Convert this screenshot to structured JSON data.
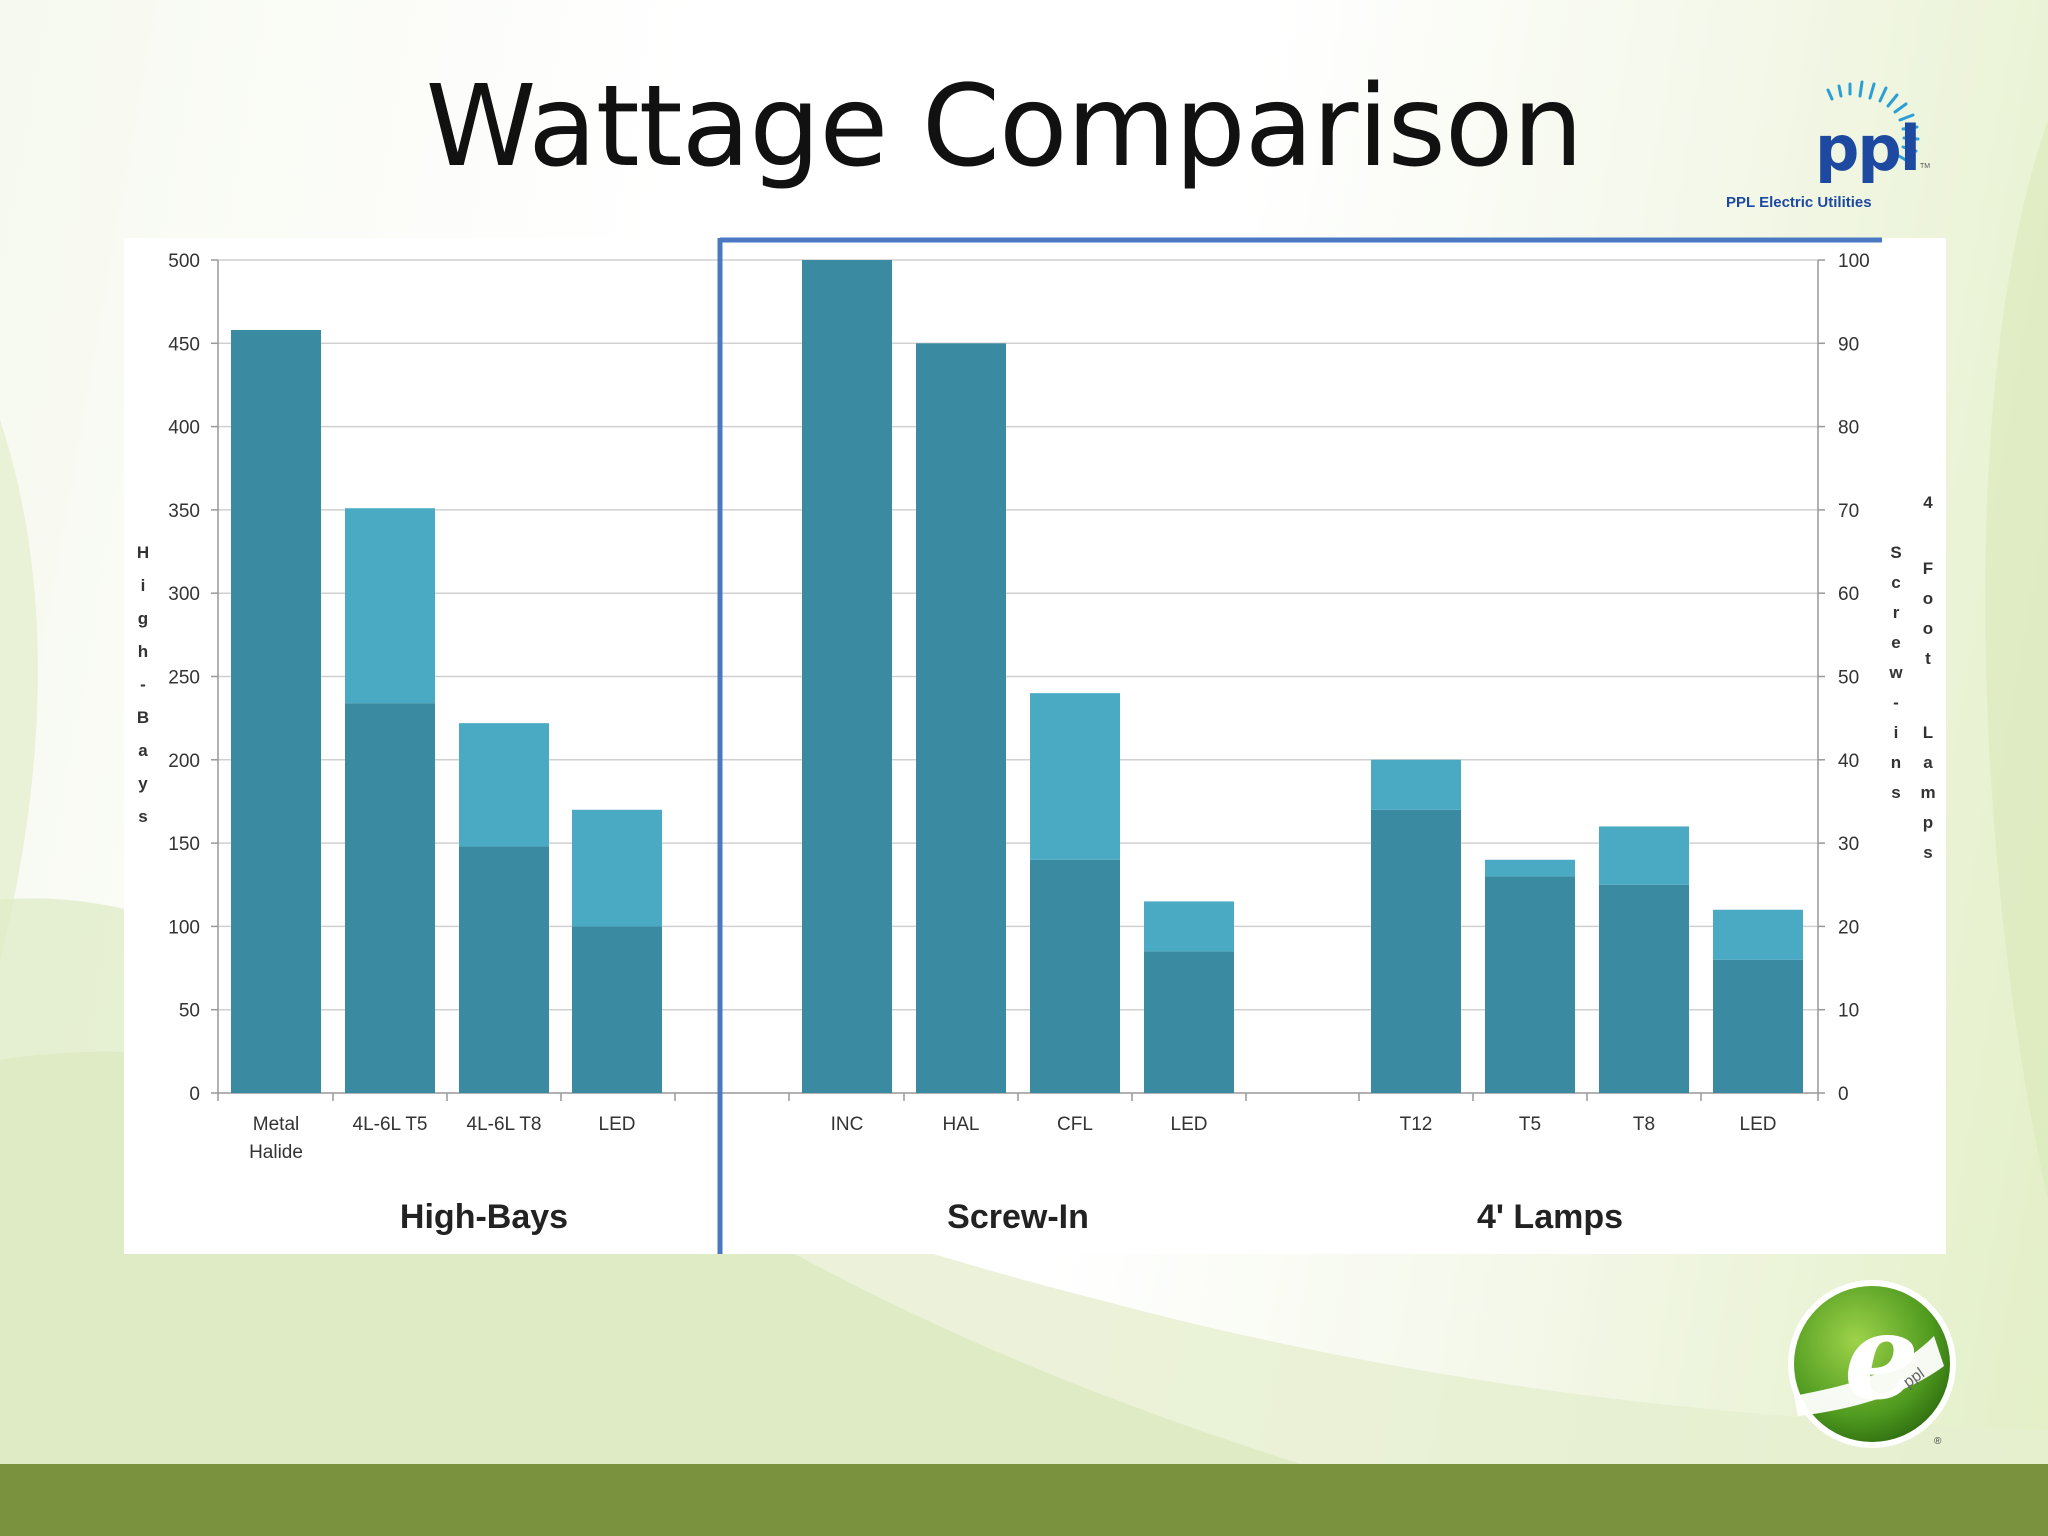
{
  "title": "Wattage Comparison",
  "logo": {
    "wordmark": "ppl",
    "tagline": "PPL Electric Utilities",
    "trademark": "TM",
    "color": "#1d49a0"
  },
  "e_logo": {
    "letter": "e",
    "brand": "ppl",
    "registered": "®"
  },
  "colors": {
    "bar_dark": "#3a8ba1",
    "bar_light": "#4aaac4",
    "divider": "#4a78c2",
    "grid": "#d0d0d0",
    "band": "#7a913e"
  },
  "chart_data": [
    {
      "type": "bar",
      "stacked": true,
      "axis": "left",
      "group_label": "High-Bays",
      "ylabel": "High-Bays",
      "ylim": [
        0,
        500
      ],
      "yticks": [
        0,
        50,
        100,
        150,
        200,
        250,
        300,
        350,
        400,
        450,
        500
      ],
      "categories": [
        "Metal Halide",
        "4L-6L T5",
        "4L-6L T8",
        "LED"
      ],
      "series": [
        {
          "values": [
            458,
            234,
            148,
            100
          ],
          "color": "#3a8ba1"
        },
        {
          "values": [
            0,
            117,
            74,
            70
          ],
          "color": "#4aaac4"
        }
      ],
      "grid": true
    },
    {
      "type": "bar",
      "stacked": true,
      "axis": "right",
      "group_label": "Screw-In",
      "ylabel": "Screw-ins",
      "ylim": [
        0,
        100
      ],
      "yticks": [
        0,
        10,
        20,
        30,
        40,
        50,
        60,
        70,
        80,
        90,
        100
      ],
      "categories": [
        "INC",
        "HAL",
        "CFL",
        "LED"
      ],
      "series": [
        {
          "values": [
            100,
            90,
            28,
            17
          ],
          "color": "#3a8ba1"
        },
        {
          "values": [
            0,
            0,
            20,
            6
          ],
          "color": "#4aaac4"
        }
      ],
      "grid": true
    },
    {
      "type": "bar",
      "stacked": true,
      "axis": "right",
      "group_label": "4' Lamps",
      "ylabel": "4 Foot Lamps",
      "ylim": [
        0,
        100
      ],
      "yticks": [
        0,
        10,
        20,
        30,
        40,
        50,
        60,
        70,
        80,
        90,
        100
      ],
      "categories": [
        "T12",
        "T5",
        "T8",
        "LED"
      ],
      "series": [
        {
          "values": [
            34,
            26,
            25,
            16
          ],
          "color": "#3a8ba1"
        },
        {
          "values": [
            6,
            2,
            7,
            6
          ],
          "color": "#4aaac4"
        }
      ],
      "grid": true
    }
  ]
}
